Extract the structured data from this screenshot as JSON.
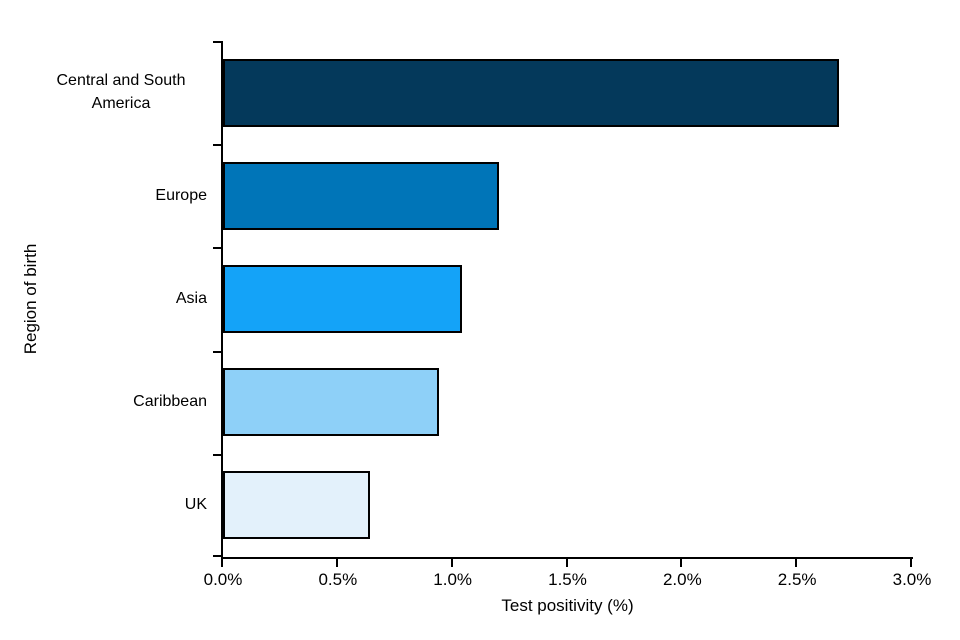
{
  "figure": {
    "background_color": "#ffffff",
    "axis_color": "#000000",
    "text_color": "#000000"
  },
  "chart_data": {
    "type": "bar",
    "orientation": "horizontal",
    "title": "",
    "xlabel": "Test positivity (%)",
    "ylabel": "Region of birth",
    "categories": [
      "Central and South America",
      "Europe",
      "Asia",
      "Caribbean",
      "UK"
    ],
    "values": [
      2.68,
      1.2,
      1.04,
      0.94,
      0.64
    ],
    "value_unit": "%",
    "bar_colors": [
      "#04395b",
      "#0075b8",
      "#14a3f8",
      "#8ed0f8",
      "#e3f1fb"
    ],
    "bar_border_color": "#000000",
    "xlim": [
      0,
      3
    ],
    "x_ticks": [
      {
        "value": 0,
        "label": "0.0%"
      },
      {
        "value": 0.5,
        "label": "0.5%"
      },
      {
        "value": 1,
        "label": "1.0%"
      },
      {
        "value": 1.5,
        "label": "1.5%"
      },
      {
        "value": 2,
        "label": "2.0%"
      },
      {
        "value": 2.5,
        "label": "2.5%"
      },
      {
        "value": 3,
        "label": "3.0%"
      }
    ],
    "grid": false,
    "legend_position": "none"
  }
}
